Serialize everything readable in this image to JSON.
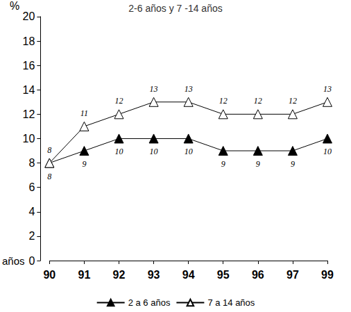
{
  "chart_data": {
    "type": "line",
    "title": "2-6 años y 7 -14 años",
    "xlabel": "años",
    "ylabel": "%",
    "categories": [
      "90",
      "91",
      "92",
      "93",
      "94",
      "95",
      "96",
      "97",
      "99"
    ],
    "series": [
      {
        "name": "2 a 6 años",
        "color": "#000000",
        "marker": "triangle",
        "values": [
          8,
          9,
          10,
          10,
          10,
          9,
          9,
          9,
          10
        ]
      },
      {
        "name": "7 a 14 años",
        "color": "#000000",
        "marker": "triangle-open",
        "values": [
          8,
          11,
          12,
          13,
          13,
          12,
          12,
          12,
          13
        ]
      }
    ],
    "ylim": [
      0,
      20
    ],
    "yticks": [
      0,
      2,
      4,
      6,
      8,
      10,
      12,
      14,
      16,
      18,
      20
    ],
    "grid": false,
    "legend": "bottom",
    "data_labels": true
  }
}
